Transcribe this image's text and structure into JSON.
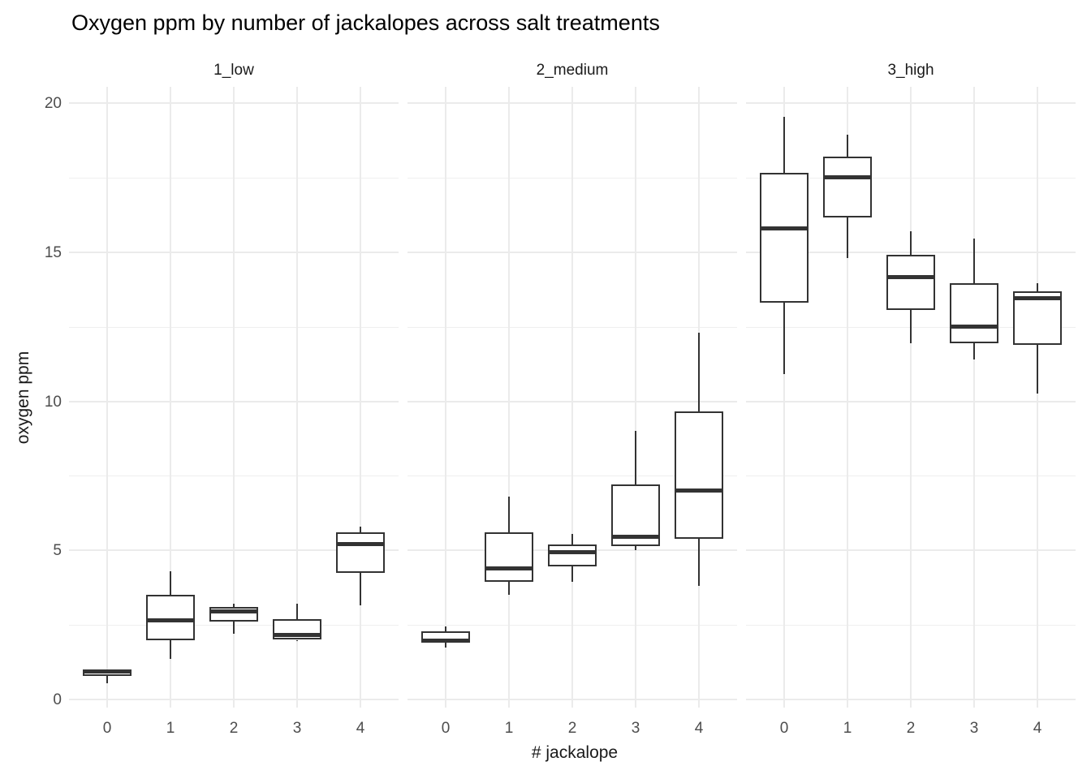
{
  "chart_data": {
    "type": "boxplot",
    "title": "Oxygen ppm by number of jackalopes across salt treatments",
    "xlabel": "# jackalope",
    "ylabel": "oxygen ppm",
    "ylim": [
      -0.27,
      20.52
    ],
    "y_ticks": [
      0,
      5,
      10,
      15,
      20
    ],
    "y_minor_ticks": [
      2.5,
      7.5,
      12.5,
      17.5
    ],
    "x_categories": [
      "0",
      "1",
      "2",
      "3",
      "4"
    ],
    "grid": "on",
    "legend": "none",
    "facets": [
      {
        "label": "1_low",
        "boxes": [
          {
            "x": "0",
            "min": 0.55,
            "q1": 0.78,
            "median": 0.93,
            "q3": 1.02,
            "max": 1.02
          },
          {
            "x": "1",
            "min": 1.35,
            "q1": 2.0,
            "median": 2.65,
            "q3": 3.5,
            "max": 4.3
          },
          {
            "x": "2",
            "min": 2.2,
            "q1": 2.6,
            "median": 2.95,
            "q3": 3.1,
            "max": 3.2
          },
          {
            "x": "3",
            "min": 1.95,
            "q1": 2.0,
            "median": 2.15,
            "q3": 2.7,
            "max": 3.2
          },
          {
            "x": "4",
            "min": 3.15,
            "q1": 4.25,
            "median": 5.2,
            "q3": 5.6,
            "max": 5.8
          }
        ]
      },
      {
        "label": "2_medium",
        "boxes": [
          {
            "x": "0",
            "min": 1.75,
            "q1": 1.9,
            "median": 1.97,
            "q3": 2.28,
            "max": 2.45
          },
          {
            "x": "1",
            "min": 3.5,
            "q1": 3.95,
            "median": 4.4,
            "q3": 5.6,
            "max": 6.8
          },
          {
            "x": "2",
            "min": 3.95,
            "q1": 4.45,
            "median": 4.95,
            "q3": 5.2,
            "max": 5.55
          },
          {
            "x": "3",
            "min": 5.0,
            "q1": 5.15,
            "median": 5.45,
            "q3": 7.2,
            "max": 9.0
          },
          {
            "x": "4",
            "min": 3.8,
            "q1": 5.4,
            "median": 7.0,
            "q3": 9.65,
            "max": 12.3
          }
        ]
      },
      {
        "label": "3_high",
        "boxes": [
          {
            "x": "0",
            "min": 10.9,
            "q1": 13.3,
            "median": 15.8,
            "q3": 17.65,
            "max": 19.55
          },
          {
            "x": "1",
            "min": 14.8,
            "q1": 16.15,
            "median": 17.5,
            "q3": 18.2,
            "max": 18.95
          },
          {
            "x": "2",
            "min": 11.95,
            "q1": 13.05,
            "median": 14.15,
            "q3": 14.9,
            "max": 15.7
          },
          {
            "x": "3",
            "min": 11.4,
            "q1": 11.95,
            "median": 12.5,
            "q3": 13.95,
            "max": 15.45
          },
          {
            "x": "4",
            "min": 10.25,
            "q1": 11.9,
            "median": 13.45,
            "q3": 13.7,
            "max": 13.95
          }
        ]
      }
    ],
    "colors": {
      "background": "#ffffff",
      "box_fill": "#ffffff",
      "box_border": "#333333",
      "median": "#333333",
      "gridline_major": "#ebebeb",
      "gridline_minor": "#efefef",
      "tick_label": "#4d4d4d",
      "text": "#1a1a1a"
    }
  }
}
